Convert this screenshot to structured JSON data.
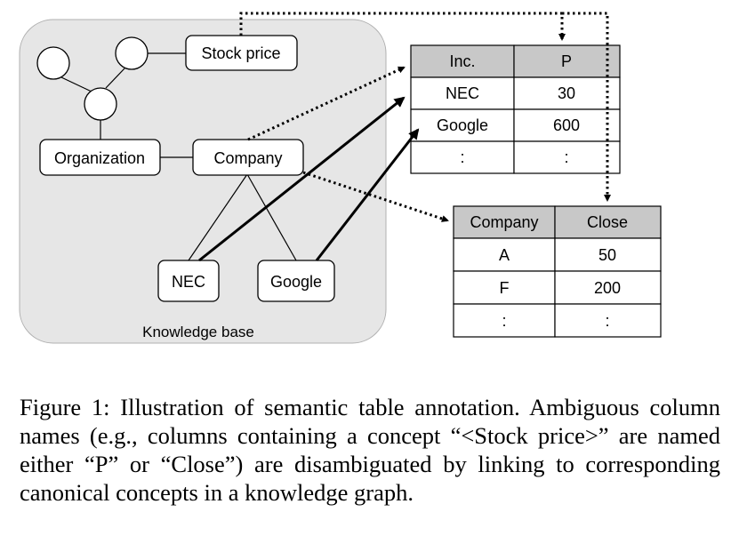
{
  "figure": {
    "kb_label": "Knowledge base",
    "nodes": {
      "stock_price": "Stock price",
      "organization": "Organization",
      "company": "Company",
      "nec": "NEC",
      "google": "Google"
    },
    "table1": {
      "headers": [
        "Inc.",
        "P"
      ],
      "rows": [
        [
          "NEC",
          "30"
        ],
        [
          "Google",
          "600"
        ],
        [
          ":",
          ":"
        ]
      ]
    },
    "table2": {
      "headers": [
        "Company",
        "Close"
      ],
      "rows": [
        [
          "A",
          "50"
        ],
        [
          "F",
          "200"
        ],
        [
          ":",
          ":"
        ]
      ]
    }
  },
  "caption": "Figure 1: Illustration of semantic table annotation. Ambiguous column names (e.g., columns containing a concept “<Stock price>” are named either “P” or “Close”) are disambiguated by linking to corresponding canonical concepts in a knowledge graph."
}
